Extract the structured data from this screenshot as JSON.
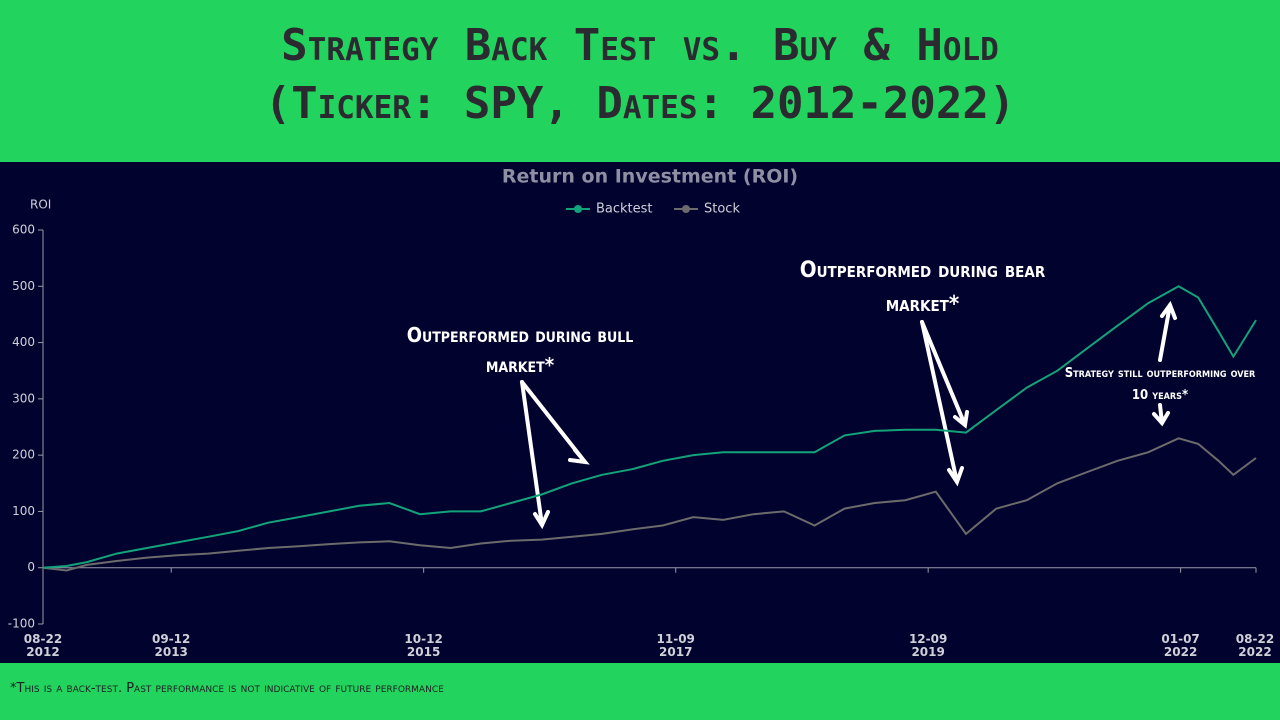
{
  "header": {
    "title_lines": [
      "Strategy Back Test vs. Buy & Hold",
      "(Ticker: SPY, Dates: 2012-2022)"
    ]
  },
  "footer": {
    "note": "*This is a back-test. Past performance is not indicative of future performance"
  },
  "chart_data": {
    "type": "line",
    "title": "Return on Investment (ROI)",
    "y_label": "ROI",
    "x": [
      "2012-08-22",
      "2012-11-01",
      "2013-01-01",
      "2013-04-01",
      "2013-07-01",
      "2013-10-01",
      "2014-01-01",
      "2014-04-01",
      "2014-07-01",
      "2014-10-01",
      "2015-01-01",
      "2015-04-01",
      "2015-07-01",
      "2015-10-01",
      "2016-01-01",
      "2016-04-01",
      "2016-07-01",
      "2016-10-01",
      "2017-01-01",
      "2017-04-01",
      "2017-07-01",
      "2017-10-01",
      "2018-01-01",
      "2018-04-01",
      "2018-07-01",
      "2018-10-01",
      "2019-01-01",
      "2019-04-01",
      "2019-07-01",
      "2019-10-01",
      "2020-01-01",
      "2020-04-01",
      "2020-07-01",
      "2020-10-01",
      "2021-01-01",
      "2021-04-01",
      "2021-07-01",
      "2021-10-01",
      "2022-01-01",
      "2022-03-01",
      "2022-05-01",
      "2022-06-15",
      "2022-08-22"
    ],
    "series": [
      {
        "name": "Backtest",
        "color": "#13a37a",
        "values": [
          0,
          3,
          10,
          25,
          35,
          45,
          55,
          65,
          80,
          90,
          100,
          110,
          115,
          95,
          100,
          100,
          115,
          130,
          150,
          165,
          175,
          190,
          200,
          205,
          205,
          205,
          205,
          235,
          243,
          245,
          245,
          240,
          280,
          320,
          350,
          390,
          430,
          470,
          500,
          480,
          420,
          375,
          440
        ]
      },
      {
        "name": "Stock",
        "color": "#6b6b6b",
        "values": [
          0,
          -5,
          5,
          12,
          18,
          22,
          25,
          30,
          35,
          38,
          42,
          45,
          47,
          40,
          35,
          43,
          48,
          50,
          55,
          60,
          68,
          75,
          90,
          85,
          95,
          100,
          75,
          105,
          115,
          120,
          135,
          60,
          105,
          120,
          150,
          170,
          190,
          205,
          230,
          220,
          190,
          165,
          195
        ]
      }
    ],
    "xlim": [
      "2012-08-22",
      "2022-08-22"
    ],
    "xticks": [
      {
        "value": "2012-08-22",
        "label": "08-22 2012"
      },
      {
        "value": "2013-09-12",
        "label": "09-12 2013"
      },
      {
        "value": "2015-10-12",
        "label": "10-12 2015"
      },
      {
        "value": "2017-11-09",
        "label": "11-09 2017"
      },
      {
        "value": "2019-12-09",
        "label": "12-09 2019"
      },
      {
        "value": "2022-01-07",
        "label": "01-07 2022"
      },
      {
        "value": "2022-08-22",
        "label": "08-22 2022"
      }
    ],
    "ylim": [
      -100,
      600
    ],
    "yticks": [
      -100,
      0,
      100,
      200,
      300,
      400,
      500,
      600
    ],
    "grid": false,
    "legend": "top",
    "annotations": [
      "Outperformed during bull market*",
      "Outperformed during bear market*",
      "Strategy still outperforming over 10 years*"
    ]
  }
}
